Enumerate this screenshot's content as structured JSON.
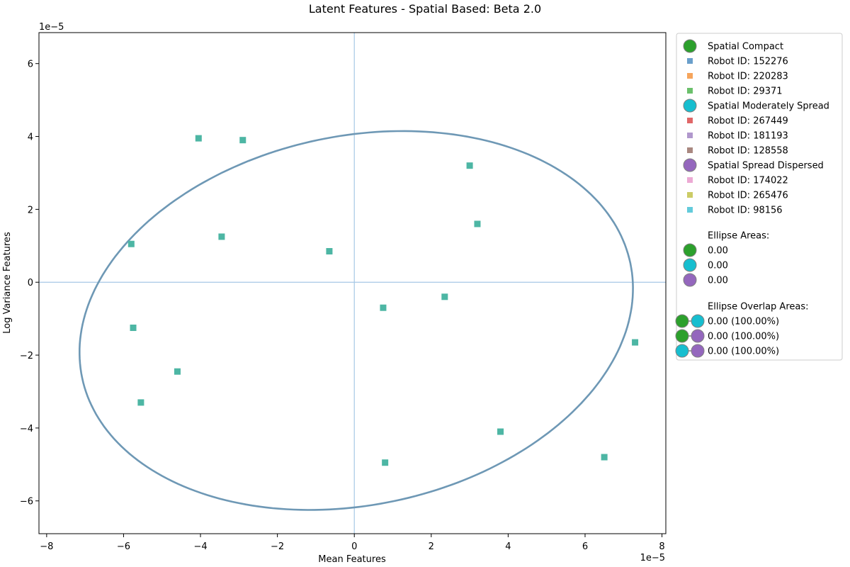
{
  "chart_data": {
    "type": "scatter",
    "title": "Latent Features - Spatial Based: Beta 2.0",
    "xlabel": "Mean Features",
    "ylabel": "Log Variance Features",
    "x_offset_label": "1e−5",
    "y_offset_label": "1e−5",
    "xlim": [
      -8.2,
      8.1
    ],
    "ylim": [
      -6.9,
      6.85
    ],
    "x_ticks": [
      -8,
      -6,
      -4,
      -2,
      0,
      2,
      4,
      6,
      8
    ],
    "x_tick_labels": [
      "−8",
      "−6",
      "−4",
      "−2",
      "0",
      "2",
      "4",
      "6",
      "8"
    ],
    "y_ticks": [
      -6,
      -4,
      -2,
      0,
      2,
      4,
      6
    ],
    "y_tick_labels": [
      "−6",
      "−4",
      "−2",
      "0",
      "2",
      "4",
      "6"
    ],
    "grid": false,
    "legend_position": "outside-right",
    "reference_lines": {
      "x": 0,
      "y": 0,
      "color": "#a6c8e6"
    },
    "points": {
      "color": "#4db6a4",
      "x": [
        -4.05,
        -2.9,
        3.0,
        -5.8,
        -3.45,
        -0.65,
        3.2,
        0.75,
        2.35,
        -5.75,
        -4.6,
        -5.55,
        7.3,
        3.8,
        0.8,
        6.5
      ],
      "y": [
        3.95,
        3.9,
        3.2,
        1.05,
        1.25,
        0.85,
        1.6,
        -0.7,
        -0.4,
        -1.25,
        -2.45,
        -3.3,
        -1.65,
        -4.1,
        -4.95,
        -4.8
      ]
    },
    "ellipse": {
      "color": "#6e98b5",
      "center": [
        0.05,
        -1.05
      ],
      "semi_axis_major": 7.3,
      "semi_axis_minor": 5.05,
      "rotation_deg": 13.5
    },
    "legend": {
      "groups": [
        {
          "label": "Spatial Compact",
          "color": "#2ca02c",
          "robots": [
            {
              "label": "Robot ID: 152276",
              "color": "#6a9fcb"
            },
            {
              "label": "Robot ID: 220283",
              "color": "#f6a55c"
            },
            {
              "label": "Robot ID: 29371",
              "color": "#6bc06b"
            }
          ]
        },
        {
          "label": "Spatial Moderately Spread",
          "color": "#17becf",
          "robots": [
            {
              "label": "Robot ID: 267449",
              "color": "#e06768"
            },
            {
              "label": "Robot ID: 181193",
              "color": "#b198cd"
            },
            {
              "label": "Robot ID: 128558",
              "color": "#a98880"
            }
          ]
        },
        {
          "label": "Spatial Spread Dispersed",
          "color": "#9467bd",
          "robots": [
            {
              "label": "Robot ID: 174022",
              "color": "#ecaad4"
            },
            {
              "label": "Robot ID: 265476",
              "color": "#cccc66"
            },
            {
              "label": "Robot ID: 98156",
              "color": "#63cbdb"
            }
          ]
        }
      ],
      "ellipse_areas_title": "Ellipse Areas:",
      "ellipse_areas": [
        {
          "label": "0.00",
          "color": "#2ca02c"
        },
        {
          "label": "0.00",
          "color": "#17becf"
        },
        {
          "label": "0.00",
          "color": "#9467bd"
        }
      ],
      "overlap_title": "Ellipse Overlap Areas:",
      "overlaps": [
        {
          "label": "0.00 (100.00%)",
          "colors": [
            "#2ca02c",
            "#17becf"
          ]
        },
        {
          "label": "0.00 (100.00%)",
          "colors": [
            "#2ca02c",
            "#9467bd"
          ]
        },
        {
          "label": "0.00 (100.00%)",
          "colors": [
            "#17becf",
            "#9467bd"
          ]
        }
      ]
    }
  }
}
